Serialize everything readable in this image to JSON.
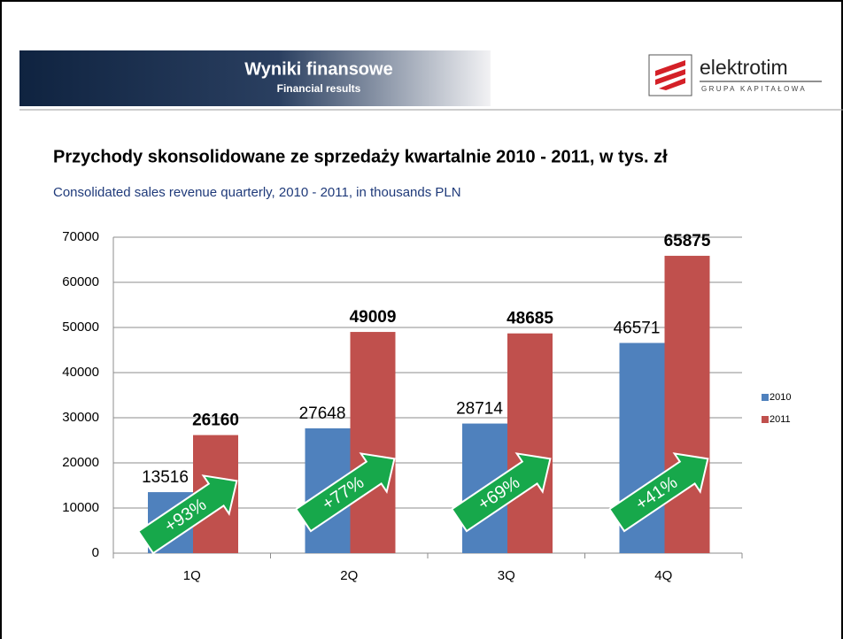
{
  "header": {
    "title": "Wyniki finansowe",
    "subtitle": "Financial results",
    "logo": "elektrotim",
    "logo_tagline": "GRUPA KAPITAŁOWA"
  },
  "chart_data": {
    "type": "bar",
    "title": "Przychody skonsolidowane ze sprzedaży kwartalnie 2010 - 2011, w tys. zł",
    "subtitle": "Consolidated sales revenue quarterly, 2010 - 2011, in thousands PLN",
    "categories": [
      "1Q",
      "2Q",
      "3Q",
      "4Q"
    ],
    "series": [
      {
        "name": "2010",
        "color": "#4f81bd",
        "values": [
          13516,
          27648,
          28714,
          46571
        ]
      },
      {
        "name": "2011",
        "color": "#c0504d",
        "values": [
          26160,
          49009,
          48685,
          65875
        ]
      }
    ],
    "annotations": [
      "+93%",
      "+77%",
      "+69%",
      "+41%"
    ],
    "ylim": [
      0,
      70000
    ],
    "yticks": [
      0,
      10000,
      20000,
      30000,
      40000,
      50000,
      60000,
      70000
    ],
    "grid": true,
    "legend": "right"
  }
}
